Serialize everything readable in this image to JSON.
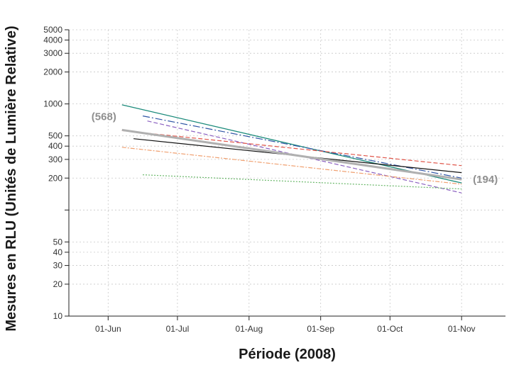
{
  "chart_data": {
    "type": "line",
    "xlabel": "Période (2008)",
    "ylabel": "Mesures en RLU (Unités de Lumière Relative)",
    "y_scale": "log",
    "ylim": [
      10,
      5000
    ],
    "xlim": [
      "2008-05-15",
      "2008-11-20"
    ],
    "grid": true,
    "x_ticks": [
      {
        "date": "2008-06-01",
        "label": "01-Jun"
      },
      {
        "date": "2008-07-01",
        "label": "01-Jul"
      },
      {
        "date": "2008-08-01",
        "label": "01-Aug"
      },
      {
        "date": "2008-09-01",
        "label": "01-Sep"
      },
      {
        "date": "2008-10-01",
        "label": "01-Oct"
      },
      {
        "date": "2008-11-01",
        "label": "01-Nov"
      }
    ],
    "y_ticks": [
      {
        "value": 10,
        "label": "10"
      },
      {
        "value": 20,
        "label": "20"
      },
      {
        "value": 30,
        "label": "30"
      },
      {
        "value": 40,
        "label": "40"
      },
      {
        "value": 50,
        "label": "50"
      },
      {
        "value": 100,
        "label": ""
      },
      {
        "value": 200,
        "label": "200"
      },
      {
        "value": 300,
        "label": "300"
      },
      {
        "value": 400,
        "label": "400"
      },
      {
        "value": 500,
        "label": "500"
      },
      {
        "value": 1000,
        "label": "1000"
      },
      {
        "value": 2000,
        "label": "2000"
      },
      {
        "value": 3000,
        "label": "3000"
      },
      {
        "value": 4000,
        "label": "4000"
      },
      {
        "value": 5000,
        "label": "5000"
      }
    ],
    "series": [
      {
        "color": "#1a8a7a",
        "dash": "",
        "width": 1.3,
        "points": [
          [
            "2008-06-07",
            980
          ],
          [
            "2008-09-01",
            360
          ],
          [
            "2008-11-01",
            180
          ]
        ]
      },
      {
        "color": "#2f55a5",
        "dash": "10,3,2,3",
        "width": 1.2,
        "points": [
          [
            "2008-06-16",
            770
          ],
          [
            "2008-11-01",
            200
          ]
        ]
      },
      {
        "color": "#8a5fc0",
        "dash": "6,3",
        "width": 1.2,
        "points": [
          [
            "2008-06-18",
            690
          ],
          [
            "2008-11-01",
            145
          ]
        ]
      },
      {
        "color": "#e0564a",
        "dash": "6,3",
        "width": 1.2,
        "points": [
          [
            "2008-06-07",
            560
          ],
          [
            "2008-11-01",
            262
          ]
        ]
      },
      {
        "color": "#111111",
        "dash": "",
        "width": 1.2,
        "points": [
          [
            "2008-06-12",
            470
          ],
          [
            "2008-11-01",
            225
          ]
        ]
      },
      {
        "color": "#f0a070",
        "dash": "6,2,2,2",
        "width": 1.2,
        "points": [
          [
            "2008-06-07",
            390
          ],
          [
            "2008-11-01",
            175
          ]
        ]
      },
      {
        "color": "#6ab86a",
        "dash": "2,2",
        "width": 1.2,
        "points": [
          [
            "2008-06-16",
            215
          ],
          [
            "2008-11-01",
            158
          ]
        ]
      },
      {
        "color": "#b0b0b0",
        "dash": "",
        "width": 3,
        "points": [
          [
            "2008-06-07",
            568
          ],
          [
            "2008-11-01",
            194
          ]
        ]
      }
    ],
    "annotations": [
      {
        "text": "(568)",
        "date": "2008-06-07",
        "value": 568
      },
      {
        "text": "(194)",
        "date": "2008-11-01",
        "value": 194
      }
    ]
  }
}
